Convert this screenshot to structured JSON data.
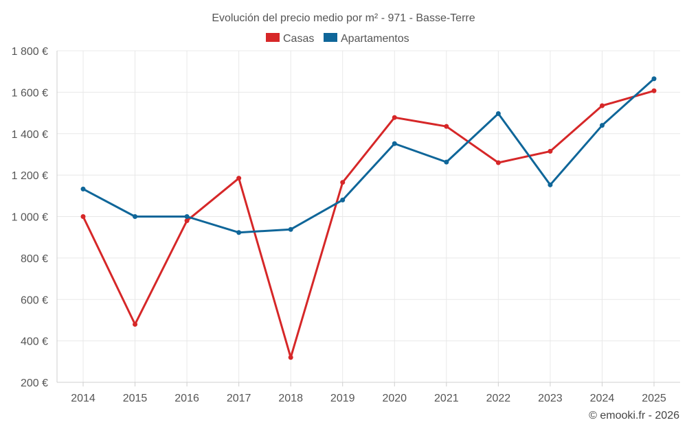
{
  "chart_data": {
    "type": "line",
    "title": "Evolución del precio medio por m² - 971 - Basse-Terre",
    "xlabel": "",
    "ylabel": "",
    "categories": [
      "2014",
      "2015",
      "2016",
      "2017",
      "2018",
      "2019",
      "2020",
      "2021",
      "2022",
      "2023",
      "2024",
      "2025"
    ],
    "ylim": [
      200,
      1800
    ],
    "yticks": [
      200,
      400,
      600,
      800,
      1000,
      1200,
      1400,
      1600,
      1800
    ],
    "ytick_labels": [
      "200 €",
      "400 €",
      "600 €",
      "800 €",
      "1 000 €",
      "1 200 €",
      "1 400 €",
      "1 600 €",
      "1 800 €"
    ],
    "grid": true,
    "legend_position": "top-center",
    "series": [
      {
        "name": "Casas",
        "color": "#d62728",
        "values": [
          1000,
          480,
          980,
          1185,
          320,
          1165,
          1478,
          1435,
          1260,
          1315,
          1535,
          1607
        ]
      },
      {
        "name": "Apartamentos",
        "color": "#0f6699",
        "values": [
          1133,
          1000,
          1000,
          923,
          938,
          1080,
          1352,
          1263,
          1497,
          1153,
          1440,
          1665
        ]
      }
    ]
  },
  "credit": "© emooki.fr - 2026"
}
